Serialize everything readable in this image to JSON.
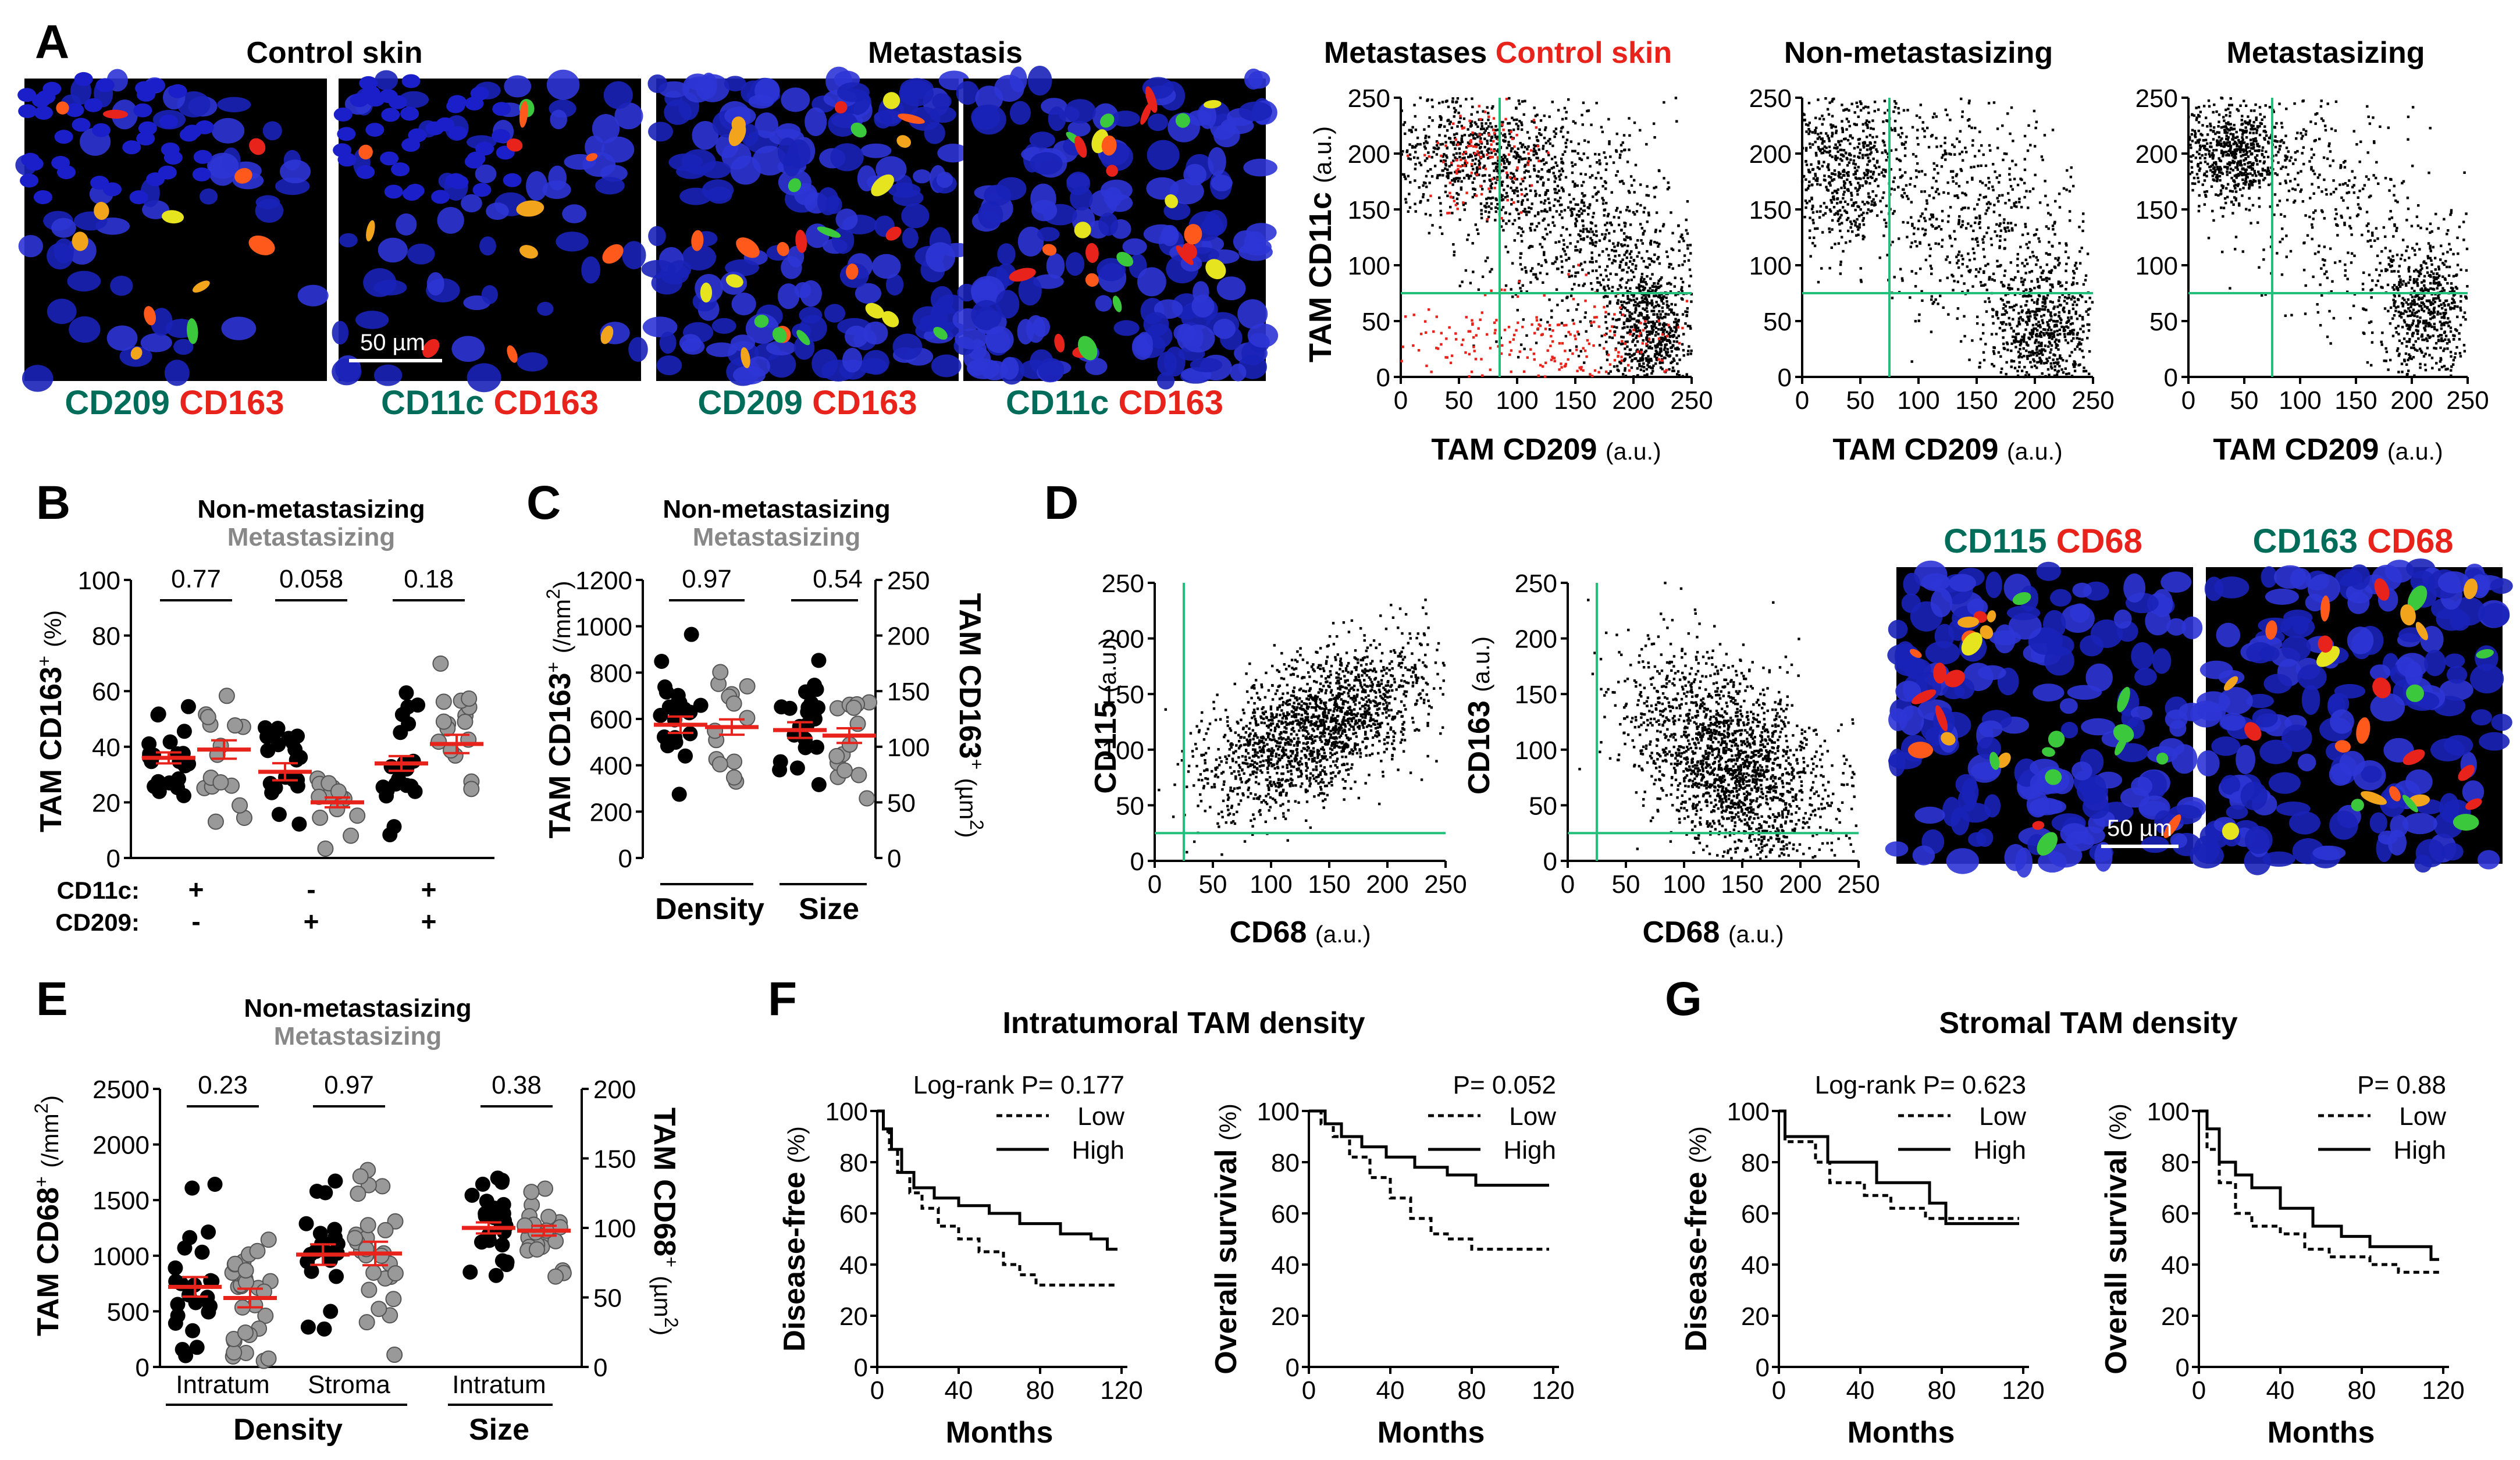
{
  "colors": {
    "green": "#006d5b",
    "red": "#e8231c",
    "gray": "#888888",
    "gate": "#22c07a",
    "black": "#000000"
  },
  "panel_letters": {
    "A": "A",
    "B": "B",
    "C": "C",
    "D": "D",
    "E": "E",
    "F": "F",
    "G": "G"
  },
  "panelA": {
    "group1_title": "Control skin",
    "group2_title": "Metastasis",
    "scale_bar": "50 µm",
    "captions": [
      {
        "green": "CD209",
        "red": "CD163"
      },
      {
        "green": "CD11c",
        "red": "CD163"
      },
      {
        "green": "CD209",
        "red": "CD163"
      },
      {
        "green": "CD11c",
        "red": "CD163"
      }
    ],
    "scatter_titles": [
      {
        "black": "Metastases",
        "red": "Control skin"
      },
      {
        "black": "Non-metastasizing",
        "red": ""
      },
      {
        "black": "Metastasizing",
        "red": ""
      }
    ],
    "ylabel_bold": "TAM CD11c",
    "ylabel_unit": "(a.u.)",
    "xlabel_bold": "TAM CD209",
    "xlabel_unit": "(a.u.)",
    "ticks": [
      "0",
      "50",
      "100",
      "150",
      "200",
      "250"
    ]
  },
  "legend": {
    "nonmet": "Non-metastasizing",
    "met": "Metastasizing"
  },
  "panelB": {
    "ylabel_bold": "TAM CD163",
    "ylabel_sup": "+",
    "ylabel_unit": "(%)",
    "yticks": [
      "0",
      "20",
      "40",
      "60",
      "80",
      "100"
    ],
    "pvalues": [
      "0.77",
      "0.058",
      "0.18"
    ],
    "row_labels": [
      "CD11c:",
      "CD209:"
    ],
    "cd11c_signs": [
      "+",
      "-",
      "+"
    ],
    "cd209_signs": [
      "-",
      "+",
      "+"
    ]
  },
  "panelC": {
    "ylabel_left": "TAM CD163",
    "ylabel_left_sup": "+",
    "ylabel_left_unit": "(/mm",
    "ylabel_left_sup2": "2",
    "ylabel_left_end": ")",
    "ylabel_right": "TAM CD163",
    "ylabel_right_sup": "+",
    "ylabel_right_unit": "(µm",
    "ylabel_right_sup2": "2",
    "ylabel_right_end": ")",
    "yticks_left": [
      "0",
      "200",
      "400",
      "600",
      "800",
      "1000",
      "1200"
    ],
    "yticks_right": [
      "0",
      "50",
      "100",
      "150",
      "200",
      "250"
    ],
    "pvalues": [
      "0.97",
      "0.54"
    ],
    "xgroups": [
      "Density",
      "Size"
    ]
  },
  "panelD": {
    "ylabels": [
      "CD115",
      "CD163"
    ],
    "yunit": "(a.u.)",
    "xlabel": "CD68",
    "xunit": "(a.u.)",
    "ticks": [
      "0",
      "50",
      "100",
      "150",
      "200",
      "250"
    ],
    "captions": [
      {
        "green": "CD115",
        "red": "CD68"
      },
      {
        "green": "CD163",
        "red": "CD68"
      }
    ],
    "scale_bar": "50 µm"
  },
  "panelE": {
    "ylabel_left": "TAM CD68",
    "ylabel_left_sup": "+",
    "ylabel_left_unit": "(/mm",
    "ylabel_left_sup2": "2",
    "ylabel_left_end": ")",
    "ylabel_right": "TAM CD68",
    "ylabel_right_sup": "+",
    "ylabel_right_unit": "(µm",
    "ylabel_right_sup2": "2",
    "ylabel_right_end": ")",
    "yticks_left": [
      "0",
      "500",
      "1000",
      "1500",
      "2000",
      "2500"
    ],
    "yticks_right": [
      "0",
      "50",
      "100",
      "150",
      "200"
    ],
    "pvalues": [
      "0.23",
      "0.97",
      "0.38"
    ],
    "xcats": [
      "Intratum",
      "Stroma",
      "Intratum"
    ],
    "xgroups": [
      "Density",
      "Size"
    ]
  },
  "panelF": {
    "title": "Intratumoral TAM density",
    "plots": [
      {
        "ylabel": "Disease-free",
        "yunit": "(%)",
        "p": "Log-rank P= 0.177"
      },
      {
        "ylabel": "Overall survival",
        "yunit": "(%)",
        "p": "P= 0.052"
      }
    ],
    "xticks": [
      "0",
      "40",
      "80",
      "120"
    ],
    "yticks": [
      "0",
      "20",
      "40",
      "60",
      "80",
      "100"
    ],
    "xlabel": "Months",
    "legend_low": "Low",
    "legend_high": "High"
  },
  "panelG": {
    "title": "Stromal TAM density",
    "plots": [
      {
        "ylabel": "Disease-free",
        "yunit": "(%)",
        "p": "Log-rank P= 0.623"
      },
      {
        "ylabel": "Overall survival",
        "yunit": "(%)",
        "p": "P= 0.88"
      }
    ],
    "xticks": [
      "0",
      "40",
      "80",
      "120"
    ],
    "yticks": [
      "0",
      "20",
      "40",
      "60",
      "80",
      "100"
    ],
    "xlabel": "Months",
    "legend_low": "Low",
    "legend_high": "High"
  },
  "chart_data": [
    {
      "panel": "B",
      "type": "scatter",
      "title": "TAM CD163+ (%)",
      "ylim": [
        0,
        100
      ],
      "categories": [
        "CD11c+ CD209-",
        "CD11c- CD209+",
        "CD11c+ CD209+"
      ],
      "series": [
        {
          "name": "Non-metastasizing",
          "means": [
            36,
            31,
            34
          ]
        },
        {
          "name": "Metastasizing",
          "means": [
            39,
            20,
            41
          ]
        }
      ]
    },
    {
      "panel": "C",
      "type": "scatter",
      "categories": [
        "Density",
        "Size"
      ],
      "left_ylim": [
        0,
        1200
      ],
      "right_ylim": [
        0,
        250
      ],
      "series": [
        {
          "name": "Non-metastasizing",
          "means": [
            575,
            115
          ]
        },
        {
          "name": "Metastasizing",
          "means": [
            565,
            110
          ]
        }
      ]
    },
    {
      "panel": "E",
      "type": "scatter",
      "categories": [
        "Intratum density",
        "Stroma density",
        "Intratum size"
      ],
      "left_ylim": [
        0,
        2500
      ],
      "right_ylim": [
        0,
        200
      ],
      "series": [
        {
          "name": "Non-metastasizing",
          "means": [
            720,
            1010,
            100
          ]
        },
        {
          "name": "Metastasizing",
          "means": [
            620,
            1020,
            98
          ]
        }
      ]
    },
    {
      "panel": "F-1",
      "type": "line",
      "title": "Intratumoral TAM density - Disease-free",
      "xlim": [
        0,
        120
      ],
      "ylim": [
        0,
        100
      ],
      "series": [
        {
          "name": "Low",
          "points": [
            [
              0,
              100
            ],
            [
              3,
              92
            ],
            [
              6,
              85
            ],
            [
              10,
              76
            ],
            [
              16,
              68
            ],
            [
              22,
              62
            ],
            [
              30,
              55
            ],
            [
              40,
              50
            ],
            [
              50,
              45
            ],
            [
              62,
              40
            ],
            [
              70,
              36
            ],
            [
              78,
              32
            ],
            [
              118,
              32
            ]
          ]
        },
        {
          "name": "High",
          "points": [
            [
              0,
              100
            ],
            [
              3,
              93
            ],
            [
              7,
              85
            ],
            [
              12,
              76
            ],
            [
              18,
              70
            ],
            [
              28,
              66
            ],
            [
              40,
              63
            ],
            [
              55,
              60
            ],
            [
              70,
              56
            ],
            [
              90,
              52
            ],
            [
              105,
              50
            ],
            [
              113,
              46
            ],
            [
              118,
              46
            ]
          ]
        }
      ]
    },
    {
      "panel": "F-2",
      "type": "line",
      "title": "Intratumoral TAM density - Overall survival",
      "xlim": [
        0,
        120
      ],
      "ylim": [
        0,
        100
      ],
      "series": [
        {
          "name": "Low",
          "points": [
            [
              0,
              100
            ],
            [
              6,
              95
            ],
            [
              12,
              90
            ],
            [
              20,
              82
            ],
            [
              30,
              74
            ],
            [
              40,
              66
            ],
            [
              50,
              58
            ],
            [
              60,
              52
            ],
            [
              68,
              50
            ],
            [
              80,
              46
            ],
            [
              118,
              46
            ]
          ]
        },
        {
          "name": "High",
          "points": [
            [
              0,
              100
            ],
            [
              8,
              95
            ],
            [
              16,
              90
            ],
            [
              26,
              86
            ],
            [
              38,
              82
            ],
            [
              52,
              78
            ],
            [
              68,
              75
            ],
            [
              82,
              71
            ],
            [
              118,
              71
            ]
          ]
        }
      ]
    },
    {
      "panel": "G-1",
      "type": "line",
      "title": "Stromal TAM density - Disease-free",
      "xlim": [
        0,
        120
      ],
      "ylim": [
        0,
        100
      ],
      "series": [
        {
          "name": "Low",
          "points": [
            [
              0,
              100
            ],
            [
              3,
              88
            ],
            [
              18,
              80
            ],
            [
              25,
              72
            ],
            [
              42,
              67
            ],
            [
              55,
              62
            ],
            [
              62,
              62
            ],
            [
              72,
              58
            ],
            [
              118,
              58
            ]
          ]
        },
        {
          "name": "High",
          "points": [
            [
              0,
              100
            ],
            [
              3,
              90
            ],
            [
              16,
              90
            ],
            [
              24,
              80
            ],
            [
              40,
              80
            ],
            [
              48,
              72
            ],
            [
              66,
              72
            ],
            [
              74,
              64
            ],
            [
              82,
              56
            ],
            [
              118,
              56
            ]
          ]
        }
      ]
    },
    {
      "panel": "G-2",
      "type": "line",
      "title": "Stromal TAM density - Overall survival",
      "xlim": [
        0,
        120
      ],
      "ylim": [
        0,
        100
      ],
      "series": [
        {
          "name": "Low",
          "points": [
            [
              0,
              100
            ],
            [
              4,
              85
            ],
            [
              10,
              72
            ],
            [
              18,
              60
            ],
            [
              26,
              55
            ],
            [
              40,
              52
            ],
            [
              52,
              46
            ],
            [
              64,
              43
            ],
            [
              84,
              40
            ],
            [
              98,
              37
            ],
            [
              118,
              37
            ]
          ]
        },
        {
          "name": "High",
          "points": [
            [
              0,
              100
            ],
            [
              4,
              93
            ],
            [
              10,
              80
            ],
            [
              18,
              75
            ],
            [
              26,
              70
            ],
            [
              40,
              62
            ],
            [
              56,
              55
            ],
            [
              70,
              51
            ],
            [
              84,
              47
            ],
            [
              112,
              47
            ],
            [
              114,
              42
            ],
            [
              118,
              42
            ]
          ]
        }
      ]
    }
  ]
}
